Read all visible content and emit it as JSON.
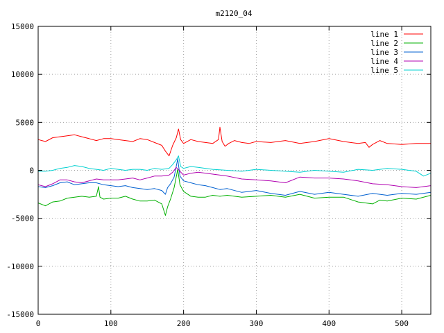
{
  "chart_data": {
    "type": "line",
    "title": "m2120_04",
    "xlabel": "",
    "ylabel": "",
    "xlim": [
      0,
      540
    ],
    "ylim": [
      -15000,
      15000
    ],
    "xticks": [
      0,
      100,
      200,
      300,
      400,
      500
    ],
    "yticks": [
      -15000,
      -10000,
      -5000,
      0,
      5000,
      10000,
      15000
    ],
    "grid": true,
    "legend_position": "top-right",
    "series": [
      {
        "name": "line 1",
        "color": "#ff0000",
        "x": [
          0,
          10,
          20,
          30,
          40,
          50,
          60,
          70,
          80,
          90,
          100,
          110,
          120,
          130,
          140,
          150,
          160,
          170,
          175,
          180,
          185,
          190,
          193,
          196,
          200,
          210,
          220,
          230,
          240,
          248,
          250,
          253,
          257,
          262,
          270,
          280,
          290,
          300,
          320,
          340,
          360,
          380,
          400,
          420,
          440,
          450,
          455,
          460,
          470,
          480,
          500,
          520,
          540
        ],
        "y": [
          3200,
          3000,
          3400,
          3500,
          3600,
          3700,
          3500,
          3300,
          3100,
          3300,
          3300,
          3200,
          3100,
          3000,
          3300,
          3200,
          2900,
          2600,
          2000,
          1500,
          2600,
          3400,
          4300,
          3200,
          2800,
          3200,
          3000,
          2900,
          2800,
          3200,
          4500,
          3000,
          2500,
          2800,
          3100,
          2900,
          2800,
          3000,
          2900,
          3100,
          2800,
          3000,
          3300,
          3000,
          2800,
          2900,
          2400,
          2700,
          3100,
          2800,
          2700,
          2800,
          2800
        ]
      },
      {
        "name": "line 2",
        "color": "#00b000",
        "x": [
          0,
          10,
          20,
          30,
          40,
          50,
          60,
          70,
          80,
          83,
          85,
          90,
          100,
          110,
          120,
          130,
          140,
          150,
          160,
          170,
          175,
          178,
          182,
          187,
          192,
          195,
          200,
          210,
          220,
          230,
          240,
          250,
          260,
          280,
          300,
          320,
          340,
          360,
          380,
          400,
          420,
          440,
          450,
          460,
          470,
          480,
          500,
          520,
          540
        ],
        "y": [
          -3400,
          -3700,
          -3300,
          -3200,
          -2900,
          -2800,
          -2700,
          -2800,
          -2700,
          -1700,
          -2800,
          -3000,
          -2900,
          -2900,
          -2700,
          -3000,
          -3200,
          -3200,
          -3100,
          -3500,
          -4700,
          -3800,
          -3000,
          -1800,
          100,
          -1500,
          -2200,
          -2700,
          -2800,
          -2800,
          -2600,
          -2700,
          -2600,
          -2800,
          -2700,
          -2600,
          -2800,
          -2500,
          -2900,
          -2800,
          -2800,
          -3300,
          -3400,
          -3500,
          -3100,
          -3200,
          -2900,
          -3000,
          -2600
        ]
      },
      {
        "name": "line 3",
        "color": "#0060d0",
        "x": [
          0,
          10,
          20,
          30,
          40,
          50,
          60,
          70,
          80,
          90,
          100,
          110,
          120,
          130,
          140,
          150,
          160,
          170,
          175,
          178,
          182,
          187,
          192,
          195,
          200,
          210,
          220,
          230,
          240,
          250,
          260,
          280,
          300,
          320,
          340,
          360,
          380,
          400,
          420,
          440,
          460,
          480,
          500,
          520,
          540
        ],
        "y": [
          -1700,
          -1800,
          -1600,
          -1300,
          -1200,
          -1500,
          -1400,
          -1300,
          -1300,
          -1500,
          -1600,
          -1700,
          -1600,
          -1800,
          -1900,
          -2000,
          -1900,
          -2100,
          -2500,
          -1800,
          -1400,
          -700,
          1200,
          -600,
          -1100,
          -1300,
          -1500,
          -1600,
          -1800,
          -2000,
          -1900,
          -2300,
          -2100,
          -2400,
          -2600,
          -2200,
          -2500,
          -2300,
          -2500,
          -2700,
          -2400,
          -2600,
          -2400,
          -2500,
          -2300
        ]
      },
      {
        "name": "line 4",
        "color": "#b000b0",
        "x": [
          0,
          10,
          20,
          30,
          40,
          50,
          60,
          70,
          80,
          90,
          100,
          110,
          120,
          130,
          140,
          150,
          160,
          170,
          180,
          185,
          190,
          195,
          200,
          210,
          220,
          240,
          260,
          280,
          300,
          320,
          340,
          360,
          380,
          400,
          420,
          440,
          460,
          480,
          500,
          520,
          540
        ],
        "y": [
          -1500,
          -1700,
          -1400,
          -1000,
          -1000,
          -1200,
          -1300,
          -1100,
          -900,
          -1000,
          -1000,
          -1000,
          -900,
          -800,
          -1000,
          -800,
          -600,
          -600,
          -500,
          -200,
          300,
          -100,
          -500,
          -300,
          -200,
          -400,
          -600,
          -900,
          -1000,
          -1100,
          -1300,
          -700,
          -800,
          -800,
          -900,
          -1100,
          -1400,
          -1500,
          -1700,
          -1800,
          -1600
        ]
      },
      {
        "name": "line 5",
        "color": "#00d0d0",
        "x": [
          0,
          10,
          20,
          30,
          40,
          50,
          60,
          70,
          80,
          90,
          100,
          110,
          120,
          130,
          140,
          150,
          160,
          170,
          180,
          185,
          190,
          193,
          196,
          200,
          210,
          220,
          240,
          260,
          280,
          300,
          320,
          340,
          360,
          380,
          400,
          420,
          440,
          460,
          480,
          500,
          520,
          530,
          540
        ],
        "y": [
          -100,
          -100,
          0,
          200,
          300,
          500,
          400,
          200,
          100,
          0,
          200,
          100,
          0,
          100,
          100,
          0,
          200,
          100,
          200,
          600,
          1100,
          1500,
          400,
          200,
          400,
          300,
          100,
          0,
          -100,
          100,
          0,
          -100,
          -200,
          0,
          -100,
          -200,
          100,
          0,
          200,
          100,
          -100,
          -600,
          -300
        ]
      }
    ]
  }
}
